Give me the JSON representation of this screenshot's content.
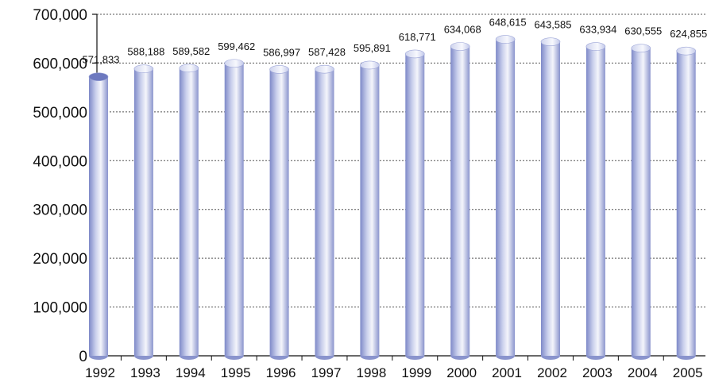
{
  "chart_data": {
    "type": "bar",
    "title": "",
    "xlabel": "",
    "ylabel": "",
    "ylim": [
      0,
      700000
    ],
    "y_ticks": [
      "0",
      "100,000",
      "200,000",
      "300,000",
      "400,000",
      "500,000",
      "600,000",
      "700,000"
    ],
    "y_tick_values": [
      0,
      100000,
      200000,
      300000,
      400000,
      500000,
      600000,
      700000
    ],
    "grid": "dotted horizontal",
    "categories": [
      "1992",
      "1993",
      "1994",
      "1995",
      "1996",
      "1997",
      "1998",
      "1999",
      "2000",
      "2001",
      "2002",
      "2003",
      "2004",
      "2005"
    ],
    "values": [
      571833,
      588188,
      589582,
      599462,
      586997,
      587428,
      595891,
      618771,
      634068,
      648615,
      643585,
      633934,
      630555,
      624855
    ],
    "data_labels": [
      "571,833",
      "588,188",
      "589,582",
      "599,462",
      "586,997",
      "587,428",
      "595,891",
      "618,771",
      "634,068",
      "648,615",
      "643,585",
      "633,934",
      "630,555",
      "624,855"
    ],
    "colors": {
      "bar_dark": "#7a85c4",
      "bar_light": "#f4f5fb",
      "bar_mid": "#aeb6e0",
      "grid": "#555555",
      "axis": "#111111"
    }
  }
}
